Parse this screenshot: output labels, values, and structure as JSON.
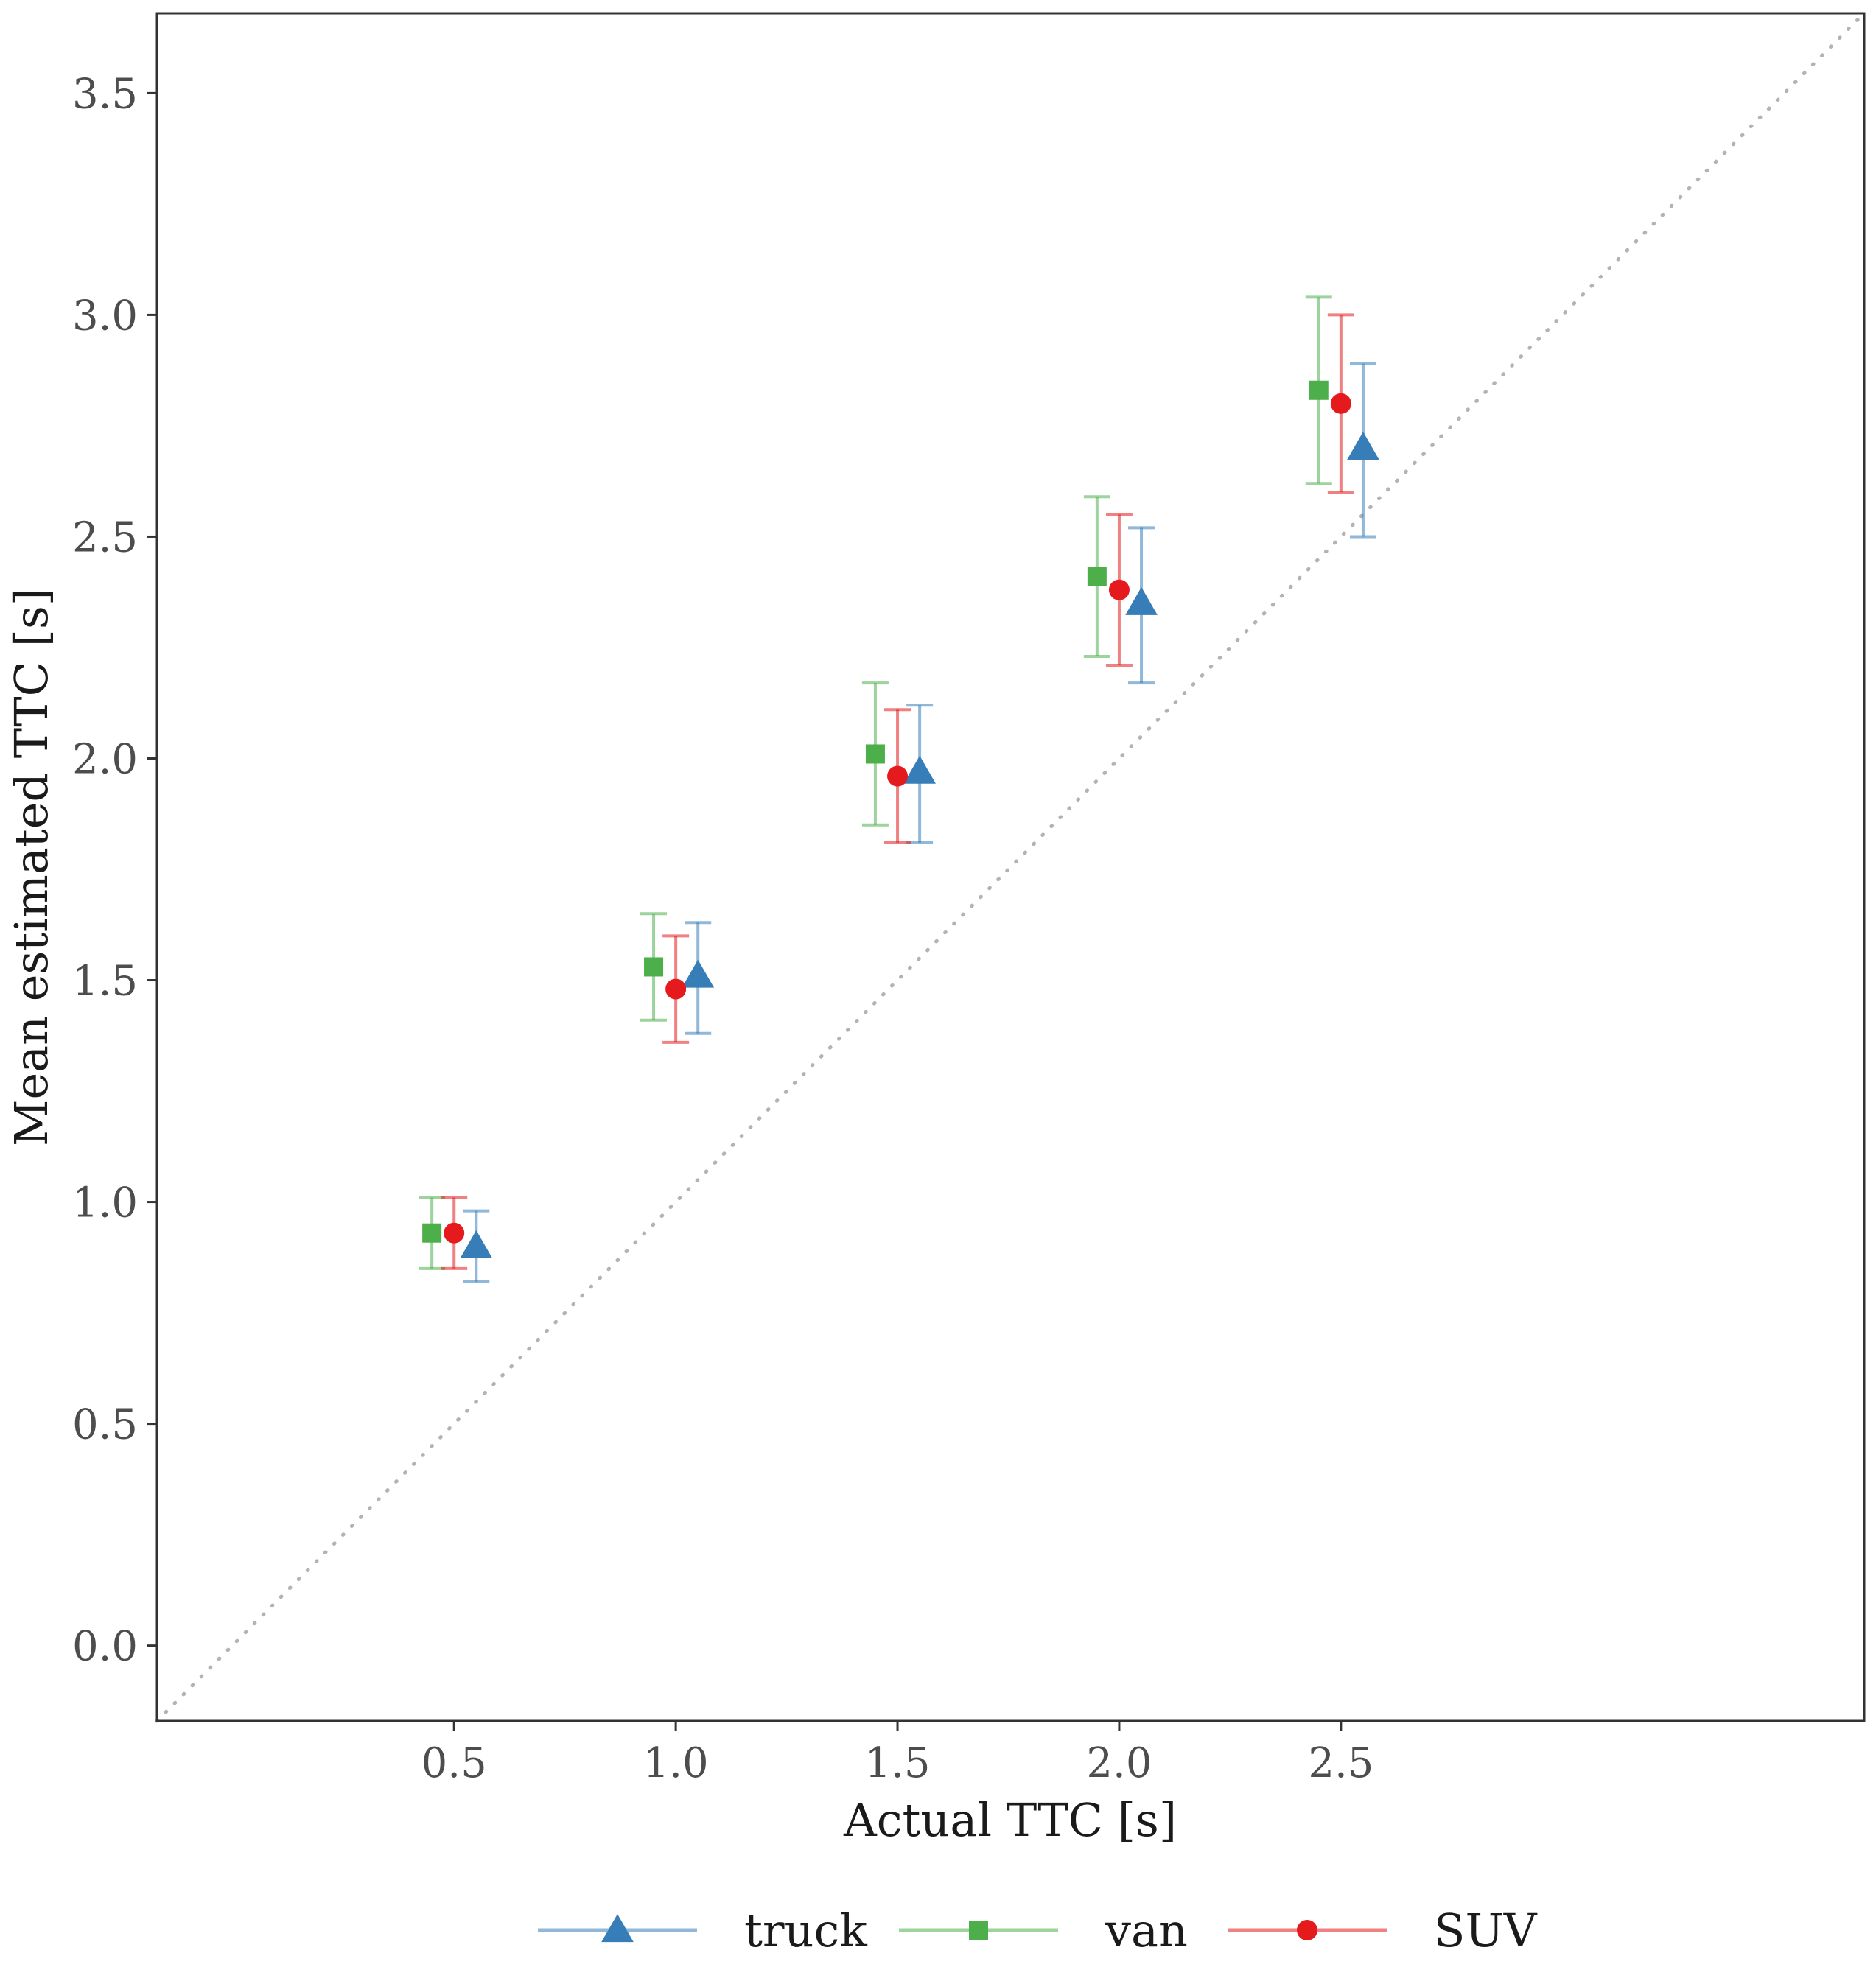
{
  "chart_data": {
    "type": "scatter",
    "title": "",
    "xlabel": "Actual TTC [s]",
    "ylabel": "Mean estimated TTC [s]",
    "xlim": [
      -0.17,
      3.68
    ],
    "ylim": [
      -0.17,
      3.68
    ],
    "x_ticks": [
      "0.5",
      "1.0",
      "1.5",
      "2.0",
      "2.5"
    ],
    "y_ticks": [
      "0.0",
      "0.5",
      "1.0",
      "1.5",
      "2.0",
      "2.5",
      "3.0",
      "3.5"
    ],
    "reference_line": "identity (dotted)",
    "legend_position": "bottom",
    "grid": false,
    "series": [
      {
        "name": "truck",
        "color": "#377eb8",
        "marker": "triangle",
        "offset": 0.05,
        "points": [
          {
            "x": 0.5,
            "y": 0.9,
            "lo": 0.82,
            "hi": 0.98
          },
          {
            "x": 1.0,
            "y": 1.51,
            "lo": 1.38,
            "hi": 1.63
          },
          {
            "x": 1.5,
            "y": 1.97,
            "lo": 1.81,
            "hi": 2.12
          },
          {
            "x": 2.0,
            "y": 2.35,
            "lo": 2.17,
            "hi": 2.52
          },
          {
            "x": 2.5,
            "y": 2.7,
            "lo": 2.5,
            "hi": 2.89
          }
        ]
      },
      {
        "name": "van",
        "color": "#4daf4a",
        "marker": "square",
        "offset": -0.05,
        "points": [
          {
            "x": 0.5,
            "y": 0.93,
            "lo": 0.85,
            "hi": 1.01
          },
          {
            "x": 1.0,
            "y": 1.53,
            "lo": 1.41,
            "hi": 1.65
          },
          {
            "x": 1.5,
            "y": 2.01,
            "lo": 1.85,
            "hi": 2.17
          },
          {
            "x": 2.0,
            "y": 2.41,
            "lo": 2.23,
            "hi": 2.59
          },
          {
            "x": 2.5,
            "y": 2.83,
            "lo": 2.62,
            "hi": 3.04
          }
        ]
      },
      {
        "name": "SUV",
        "color": "#e41a1c",
        "marker": "circle",
        "offset": 0.0,
        "points": [
          {
            "x": 0.5,
            "y": 0.93,
            "lo": 0.85,
            "hi": 1.01
          },
          {
            "x": 1.0,
            "y": 1.48,
            "lo": 1.36,
            "hi": 1.6
          },
          {
            "x": 1.5,
            "y": 1.96,
            "lo": 1.81,
            "hi": 2.11
          },
          {
            "x": 2.0,
            "y": 2.38,
            "lo": 2.21,
            "hi": 2.55
          },
          {
            "x": 2.5,
            "y": 2.8,
            "lo": 2.6,
            "hi": 3.0
          }
        ]
      }
    ],
    "legend_order": [
      "truck",
      "van",
      "SUV"
    ]
  }
}
